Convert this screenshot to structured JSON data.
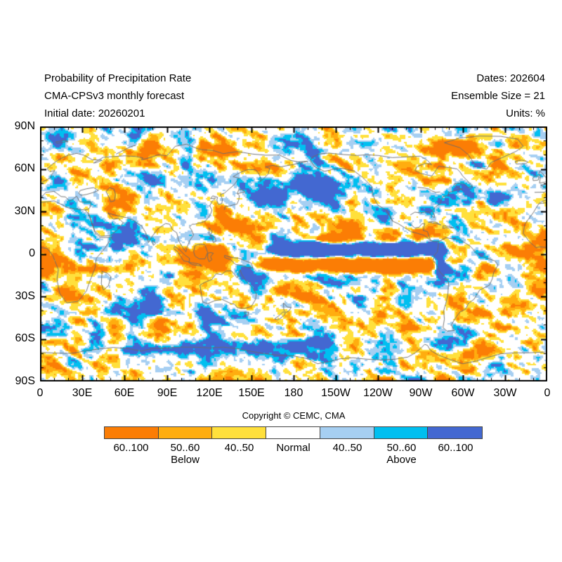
{
  "header": {
    "left_lines": [
      "Probability of Precipitation Rate",
      "CMA-CPSv3 monthly forecast",
      "Initial date: 20260201"
    ],
    "right_lines": [
      "Dates: 202604",
      "Ensemble Size = 21",
      "Units: %"
    ]
  },
  "map": {
    "lat_labels": [
      "90N",
      "60N",
      "30N",
      "0",
      "30S",
      "60S",
      "90S"
    ],
    "lon_labels": [
      "0",
      "30E",
      "60E",
      "90E",
      "120E",
      "150E",
      "180",
      "150W",
      "120W",
      "90W",
      "60W",
      "30W",
      "0"
    ]
  },
  "copyright": "Copyright © CEMC, CMA",
  "legend": {
    "below_label": "Below",
    "above_label": "Above",
    "categories": [
      {
        "label": "60..100",
        "color": "#FB7D05",
        "group": "below"
      },
      {
        "label": "50..60",
        "color": "#FFAD0F",
        "group": "below"
      },
      {
        "label": "40..50",
        "color": "#FFE03C",
        "group": "below"
      },
      {
        "label": "Normal",
        "color": "#FFFFFF",
        "group": "normal"
      },
      {
        "label": "40..50",
        "color": "#A6CFF2",
        "group": "above"
      },
      {
        "label": "50..60",
        "color": "#00BFF0",
        "group": "above"
      },
      {
        "label": "60..100",
        "color": "#4368D1",
        "group": "above"
      }
    ]
  },
  "chart_data": {
    "type": "heatmap",
    "title": "Probability of Precipitation Rate",
    "subtitle": "CMA-CPSv3 monthly forecast",
    "initial_date": "20260201",
    "forecast_dates": "202604",
    "ensemble_size": 21,
    "units": "%",
    "projection": "equirectangular world map, longitude 0E to 360E left-to-right, latitude 90N to 90S top-to-bottom",
    "x_axis": {
      "ticks": [
        "0",
        "30E",
        "60E",
        "90E",
        "120E",
        "150E",
        "180",
        "150W",
        "120W",
        "90W",
        "60W",
        "30W",
        "0"
      ],
      "major_tick_interval_deg": 30,
      "minor_tick_interval_deg": 10
    },
    "y_axis": {
      "ticks": [
        "90N",
        "60N",
        "30N",
        "0",
        "30S",
        "60S",
        "90S"
      ],
      "major_tick_interval_deg": 30,
      "minor_tick_interval_deg": 10
    },
    "legend_bins": [
      "Below 60..100",
      "Below 50..60",
      "Below 40..50",
      "Normal",
      "Above 40..50",
      "Above 50..60",
      "Above 60..100"
    ],
    "notable_patterns": [
      "solid above-normal (blue) band along equatorial Pacific from ~165E to South American coast",
      "strong below-normal (orange) band just south of it across the tropical Pacific",
      "below-normal streaks over Maritime Continent, India/Bay of Bengal and western subtropical North Pacific",
      "above-normal band over Southern Ocean near 65S between 60E and 180",
      "below-normal streaks along the Arctic coast near 75N",
      "speckled mixed anomalies elsewhere"
    ]
  }
}
